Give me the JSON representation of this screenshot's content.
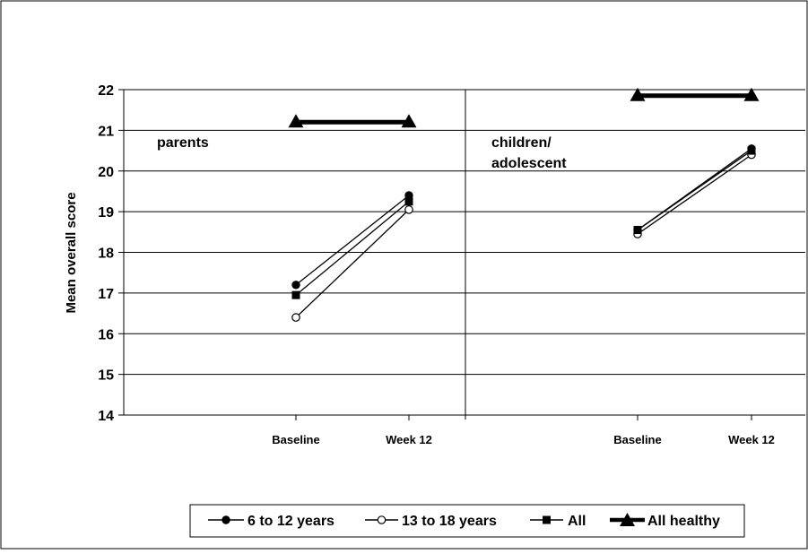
{
  "chart_data": {
    "type": "line",
    "ylabel": "Mean overall score",
    "ylim": [
      14,
      22
    ],
    "yticks": [
      "14",
      "15",
      "16",
      "17",
      "18",
      "19",
      "20",
      "21",
      "22"
    ],
    "grid": true,
    "legend_position": "bottom",
    "legend": [
      "6 to 12 years",
      "13 to 18 years",
      "All",
      "All healthy"
    ],
    "panels": [
      {
        "label": "parents",
        "categories": [
          "Baseline",
          "Week 12"
        ],
        "series": [
          {
            "name": "6 to 12 years",
            "marker": "circle-filled",
            "values": [
              17.2,
              19.4
            ]
          },
          {
            "name": "13 to 18 years",
            "marker": "circle-open",
            "values": [
              16.4,
              19.05
            ]
          },
          {
            "name": "All",
            "marker": "square",
            "values": [
              16.95,
              19.25
            ]
          },
          {
            "name": "All healthy",
            "marker": "triangle",
            "values": [
              21.2,
              21.2
            ]
          }
        ]
      },
      {
        "label": "children/ adolescent",
        "label_lines": [
          "children/",
          "adolescent"
        ],
        "categories": [
          "Baseline",
          "Week 12"
        ],
        "series": [
          {
            "name": "6 to 12 years",
            "marker": "circle-filled",
            "values": [
              18.55,
              20.55
            ]
          },
          {
            "name": "13 to 18 years",
            "marker": "circle-open",
            "values": [
              18.45,
              20.4
            ]
          },
          {
            "name": "All",
            "marker": "square",
            "values": [
              18.55,
              20.5
            ]
          },
          {
            "name": "All healthy",
            "marker": "triangle",
            "values": [
              21.85,
              21.85
            ]
          }
        ]
      }
    ]
  }
}
